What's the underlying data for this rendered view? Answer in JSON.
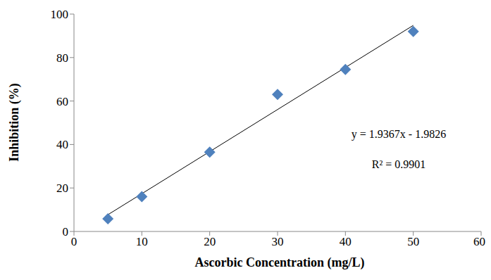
{
  "chart_data": {
    "type": "scatter",
    "x_label": "Ascorbic Concentration (mg/L)",
    "y_label": "Inhibition (%)",
    "x": [
      5,
      10,
      20,
      30,
      40,
      50
    ],
    "values": [
      5.8,
      16,
      36.5,
      63,
      74.5,
      92
    ],
    "color": "#4f81bd",
    "marker": "diamond",
    "trendline": {
      "x": [
        5,
        50
      ],
      "values": [
        7.7,
        94.8
      ],
      "color": "#000000"
    },
    "annotations": [
      "y = 1.9367x - 1.9826",
      "R² = 0.9901"
    ],
    "xlim": [
      0,
      60
    ],
    "xticks": [
      0,
      10,
      20,
      30,
      40,
      50,
      60
    ],
    "ylim": [
      0,
      100
    ],
    "yticks": [
      0,
      20,
      40,
      60,
      80,
      100
    ],
    "grid": false
  }
}
